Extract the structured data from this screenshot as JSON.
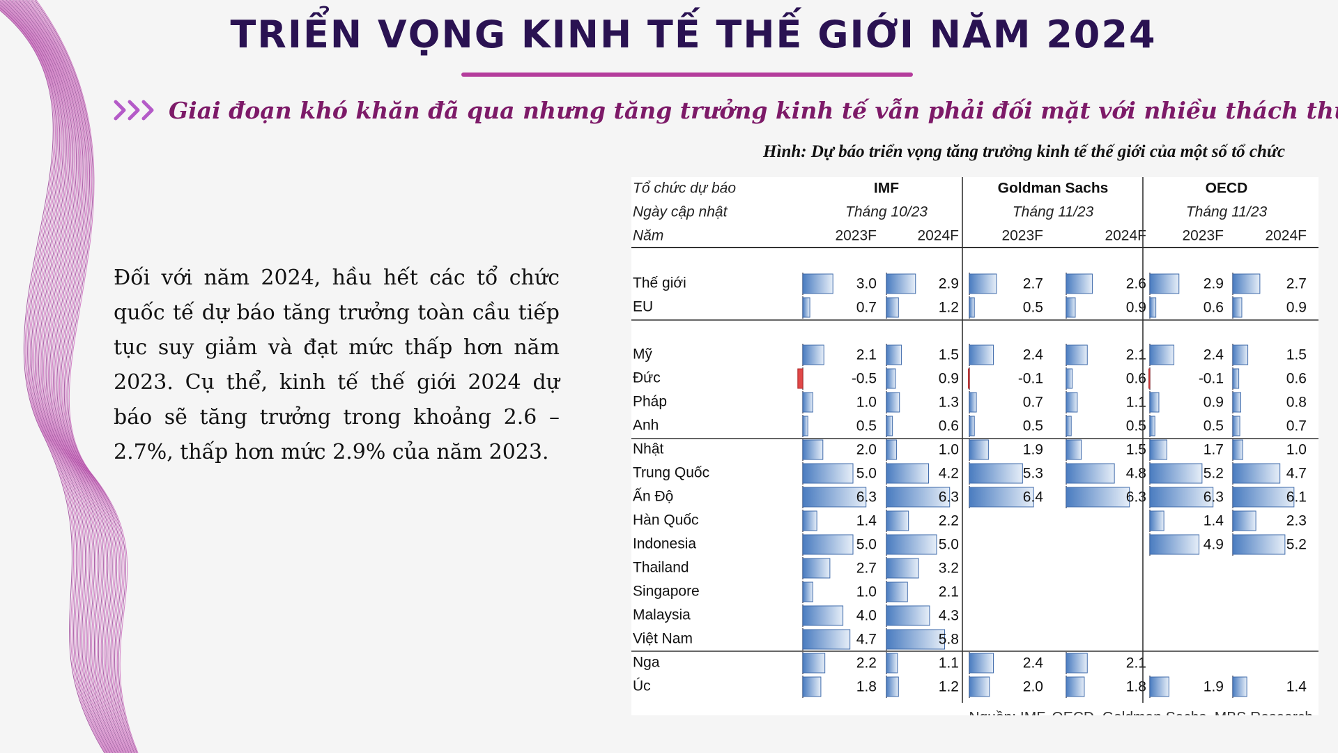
{
  "page": {
    "title": "TRIỂN VỌNG KINH TẾ THẾ GIỚI NĂM 2024",
    "subtitle": "Giai đoạn khó khăn đã qua nhưng tăng trưởng kinh tế vẫn phải đối mặt với nhiều thách thức",
    "body": "Đối với năm 2024, hầu hết các tổ chức quốc tế dự báo tăng trưởng toàn cầu tiếp tục suy giảm và đạt mức thấp hơn năm 2023. Cụ thể, kinh tế thế giới 2024 dự báo sẽ tăng trưởng trong khoảng 2.6 – 2.7%, thấp hơn mức 2.9% của năm 2023.",
    "caption": "Hình: Dự báo triển vọng tăng trưởng kinh tế thế giới của một số tổ chức",
    "colors": {
      "title": "#2a1252",
      "accent": "#b43c9c",
      "subtitle": "#7d1a68",
      "bar": "#4a7cc0",
      "negative_bar": "#e04848"
    }
  },
  "chart_data": {
    "type": "table",
    "header_labels": [
      "Tổ chức dự báo",
      "Ngày cập nhật",
      "Năm"
    ],
    "organizations": [
      {
        "name": "IMF",
        "updated": "Tháng 10/23",
        "years": [
          "2023F",
          "2024F"
        ]
      },
      {
        "name": "Goldman Sachs",
        "updated": "Tháng 11/23",
        "years": [
          "2023F",
          "2024F"
        ]
      },
      {
        "name": "OECD",
        "updated": "Tháng 11/23",
        "years": [
          "2023F",
          "2024F"
        ]
      }
    ],
    "groups": [
      [
        {
          "name": "Thế giới",
          "values": [
            3.0,
            2.9,
            2.7,
            2.6,
            2.9,
            2.7
          ]
        },
        {
          "name": "EU",
          "values": [
            0.7,
            1.2,
            0.5,
            0.9,
            0.6,
            0.9
          ]
        }
      ],
      [
        {
          "name": "Mỹ",
          "values": [
            2.1,
            1.5,
            2.4,
            2.1,
            2.4,
            1.5
          ]
        },
        {
          "name": "Đức",
          "values": [
            -0.5,
            0.9,
            -0.1,
            0.6,
            -0.1,
            0.6
          ]
        },
        {
          "name": "Pháp",
          "values": [
            1.0,
            1.3,
            0.7,
            1.1,
            0.9,
            0.8
          ]
        },
        {
          "name": "Anh",
          "values": [
            0.5,
            0.6,
            0.5,
            0.5,
            0.5,
            0.7
          ]
        }
      ],
      [
        {
          "name": "Nhật",
          "values": [
            2.0,
            1.0,
            1.9,
            1.5,
            1.7,
            1.0
          ]
        },
        {
          "name": "Trung Quốc",
          "values": [
            5.0,
            4.2,
            5.3,
            4.8,
            5.2,
            4.7
          ]
        },
        {
          "name": "Ấn Độ",
          "values": [
            6.3,
            6.3,
            6.4,
            6.3,
            6.3,
            6.1
          ]
        },
        {
          "name": "Hàn Quốc",
          "values": [
            1.4,
            2.2,
            null,
            null,
            1.4,
            2.3
          ]
        },
        {
          "name": "Indonesia",
          "values": [
            5.0,
            5.0,
            null,
            null,
            4.9,
            5.2
          ]
        },
        {
          "name": "Thailand",
          "values": [
            2.7,
            3.2,
            null,
            null,
            null,
            null
          ]
        },
        {
          "name": "Singapore",
          "values": [
            1.0,
            2.1,
            null,
            null,
            null,
            null
          ]
        },
        {
          "name": "Malaysia",
          "values": [
            4.0,
            4.3,
            null,
            null,
            null,
            null
          ]
        },
        {
          "name": "Việt Nam",
          "values": [
            4.7,
            5.8,
            null,
            null,
            null,
            null
          ]
        }
      ],
      [
        {
          "name": "Nga",
          "values": [
            2.2,
            1.1,
            2.4,
            2.1,
            null,
            null
          ]
        },
        {
          "name": "Úc",
          "values": [
            1.8,
            1.2,
            2.0,
            1.8,
            1.9,
            1.4
          ]
        }
      ]
    ],
    "source": "Nguồn: IMF, OECD, Goldman Sachs, MBS Research"
  }
}
